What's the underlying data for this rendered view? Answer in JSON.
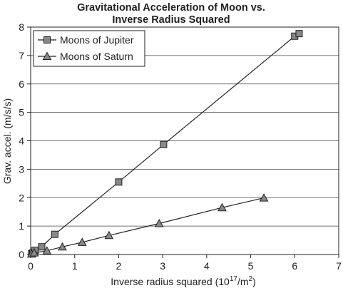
{
  "chart_data": {
    "type": "scatter",
    "title_lines": [
      "Gravitational Acceleration of Moon vs.",
      "Inverse Radius Squared"
    ],
    "xlabel": "Inverse radius squared (10",
    "xlabel_sup": "17",
    "xlabel_tail": "/m",
    "xlabel_sup2": "2",
    "xlabel_end": ")",
    "ylabel": "Grav. accel. (m/s/s)",
    "xlim": [
      0,
      7
    ],
    "ylim": [
      0,
      8
    ],
    "xticks": [
      0,
      1,
      2,
      3,
      4,
      5,
      6,
      7
    ],
    "yticks": [
      0,
      1,
      2,
      3,
      4,
      5,
      6,
      7,
      8
    ],
    "grid": "horizontal",
    "legend_position": "top-left",
    "series": [
      {
        "name": "Moons of Jupiter",
        "marker": "square",
        "color": "#888888",
        "points": [
          [
            0.02,
            0.03
          ],
          [
            0.05,
            0.06
          ],
          [
            0.1,
            0.15
          ],
          [
            0.25,
            0.27
          ],
          [
            0.55,
            0.71
          ],
          [
            2.0,
            2.55
          ],
          [
            3.02,
            3.87
          ],
          [
            6.0,
            7.68
          ],
          [
            6.1,
            7.77
          ]
        ]
      },
      {
        "name": "Moons of Saturn",
        "marker": "triangle",
        "color": "#888888",
        "points": [
          [
            0.02,
            0.02
          ],
          [
            0.08,
            0.06
          ],
          [
            0.37,
            0.13
          ],
          [
            0.72,
            0.27
          ],
          [
            1.17,
            0.43
          ],
          [
            1.78,
            0.67
          ],
          [
            2.92,
            1.09
          ],
          [
            4.35,
            1.65
          ],
          [
            5.3,
            1.99
          ]
        ]
      }
    ]
  }
}
